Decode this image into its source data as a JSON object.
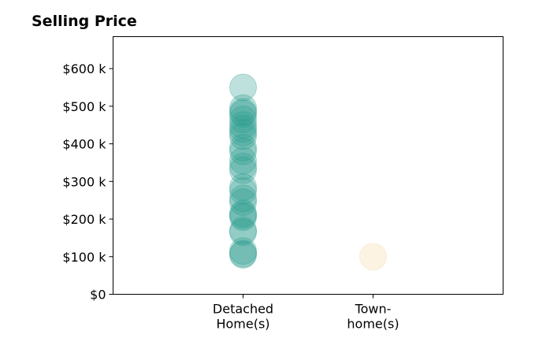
{
  "chart_data": {
    "type": "scatter",
    "title": "Selling Price",
    "xlabel": "",
    "ylabel": "",
    "categories": [
      [
        "Detached",
        "Home(s)"
      ],
      [
        "Town-",
        "home(s)"
      ]
    ],
    "y_ticks": [
      {
        "value": 0,
        "label": "$0"
      },
      {
        "value": 100,
        "label": "$100 k"
      },
      {
        "value": 200,
        "label": "$200 k"
      },
      {
        "value": 300,
        "label": "$300 k"
      },
      {
        "value": 400,
        "label": "$400 k"
      },
      {
        "value": 500,
        "label": "$500 k"
      },
      {
        "value": 600,
        "label": "$600 k"
      }
    ],
    "ylim": [
      0,
      685
    ],
    "xlim": [
      -1,
      2
    ],
    "grid": false,
    "series": [
      {
        "category_index": 0,
        "color": "#2a9d8f",
        "values": [
          550,
          495,
          485,
          480,
          465,
          450,
          440,
          430,
          420,
          390,
          380,
          355,
          340,
          330,
          285,
          275,
          255,
          245,
          215,
          210,
          205,
          170,
          165,
          115,
          108,
          105
        ]
      },
      {
        "category_index": 1,
        "color": "#f4d6a0",
        "values": [
          100
        ]
      }
    ]
  }
}
